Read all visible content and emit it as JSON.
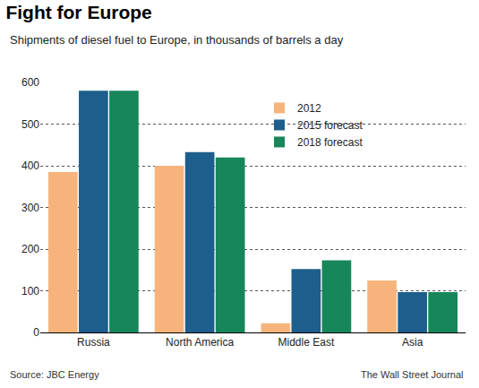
{
  "chart_data": {
    "type": "bar",
    "title": "Fight for Europe",
    "subtitle": "Shipments of diesel fuel to Europe, in thousands of barrels a day",
    "categories": [
      "Russia",
      "North America",
      "Middle East",
      "Asia"
    ],
    "series": [
      {
        "name": "2012",
        "color": "#f6b47c",
        "values": [
          385,
          400,
          22,
          125
        ]
      },
      {
        "name": "2015 forecast",
        "color": "#1d5e8c",
        "values": [
          580,
          433,
          152,
          97
        ]
      },
      {
        "name": "2018 forecast",
        "color": "#17865a",
        "values": [
          580,
          420,
          173,
          97
        ]
      }
    ],
    "ylim": [
      0,
      600
    ],
    "yticks": [
      0,
      100,
      200,
      300,
      400,
      500,
      600
    ],
    "grid": true,
    "legend": "upper center",
    "annotations": [
      "Source: JBC Energy",
      "The Wall Street Journal"
    ]
  }
}
